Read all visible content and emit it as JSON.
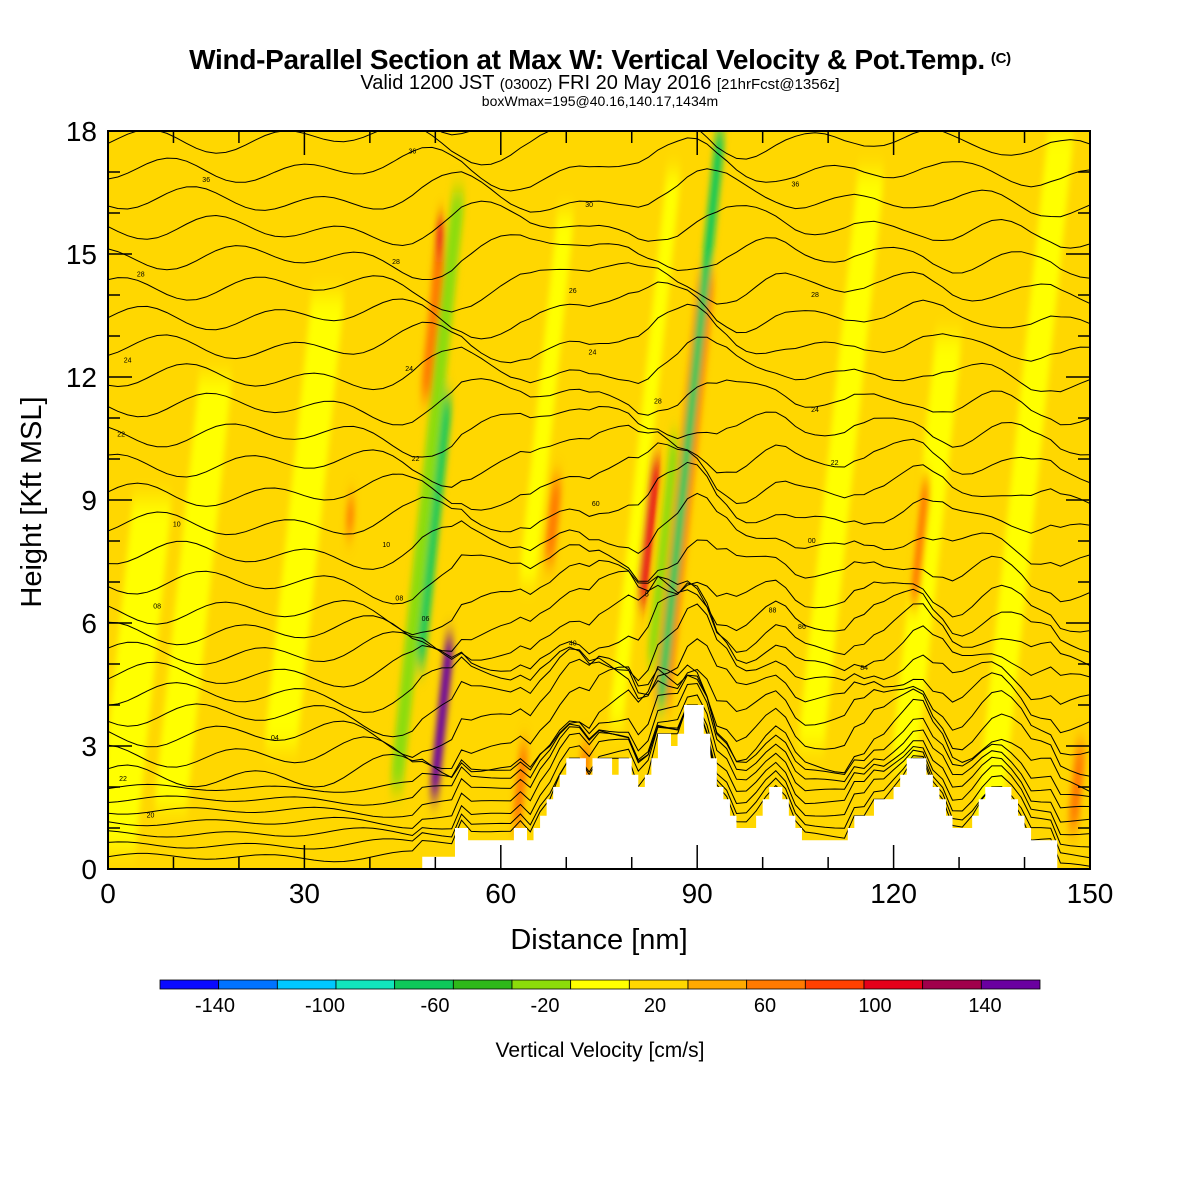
{
  "header": {
    "title": "Wind-Parallel Section at Max W: Vertical Velocity & Pot.Temp.",
    "copyright": "(C)",
    "valid_prefix": "Valid 1200 JST",
    "valid_z": "(0300Z)",
    "valid_date": "FRI 20 May 2016",
    "forecast": "[21hrFcst@1356z]",
    "box_info": "boxWmax=195@40.16,140.17,1434m"
  },
  "chart_data": {
    "type": "heatmap",
    "xlabel": "Distance [nm]",
    "ylabel": "Height [Kft MSL]",
    "xlim": [
      0,
      150
    ],
    "ylim": [
      0,
      18
    ],
    "x_ticks": [
      0,
      30,
      60,
      90,
      120,
      150
    ],
    "y_ticks": [
      0,
      3,
      6,
      9,
      12,
      15,
      18
    ],
    "background_value": 10,
    "columns": [
      {
        "x": 51,
        "w": 1.4,
        "y0": 1.8,
        "y1": 5.6,
        "value": 150
      },
      {
        "x": 50.5,
        "w": 1.2,
        "y0": 14.3,
        "y1": 15.8,
        "value": 90
      },
      {
        "x": 49.7,
        "w": 1.8,
        "y0": 11.5,
        "y1": 15.0,
        "value": 50
      },
      {
        "x": 49.7,
        "w": 1.6,
        "y0": 5.0,
        "y1": 11.5,
        "value": -80
      },
      {
        "x": 48.8,
        "w": 2.0,
        "y0": 2.0,
        "y1": 16.5,
        "value": -30
      },
      {
        "x": 87.8,
        "w": 1.4,
        "y0": 7.0,
        "y1": 12.5,
        "value": 150
      },
      {
        "x": 88,
        "w": 1.8,
        "y0": 5.5,
        "y1": 14.0,
        "value": 100
      },
      {
        "x": 88,
        "w": 2.6,
        "y0": 4.0,
        "y1": 14.5,
        "value": 50
      },
      {
        "x": 89,
        "w": 1.4,
        "y0": 4.0,
        "y1": 18.0,
        "value": -80
      },
      {
        "x": 82.5,
        "w": 1.6,
        "y0": 6.5,
        "y1": 10.0,
        "value": 80
      },
      {
        "x": 84.8,
        "w": 1.4,
        "y0": 5.0,
        "y1": 10.5,
        "value": -40
      },
      {
        "x": 82,
        "w": 2.2,
        "y0": 3.5,
        "y1": 17.0,
        "value": -20
      },
      {
        "x": 67,
        "w": 2.6,
        "y0": 7.0,
        "y1": 16.0,
        "value": -20
      },
      {
        "x": 68,
        "w": 1.6,
        "y0": 7.5,
        "y1": 9.5,
        "value": 50
      },
      {
        "x": 13,
        "w": 5.0,
        "y0": 1.5,
        "y1": 12.0,
        "value": -10
      },
      {
        "x": 4,
        "w": 6.0,
        "y0": 0.5,
        "y1": 9.0,
        "value": -10
      },
      {
        "x": 30,
        "w": 5.0,
        "y0": 3.0,
        "y1": 14.0,
        "value": -10
      },
      {
        "x": 112,
        "w": 4.0,
        "y0": 3.0,
        "y1": 17.0,
        "value": -10
      },
      {
        "x": 125,
        "w": 4.0,
        "y0": 2.5,
        "y1": 13.0,
        "value": -10
      },
      {
        "x": 140,
        "w": 4.0,
        "y0": 1.0,
        "y1": 18.0,
        "value": -10
      },
      {
        "x": 124,
        "w": 1.4,
        "y0": 6.5,
        "y1": 9.5,
        "value": 40
      },
      {
        "x": 37,
        "w": 1.2,
        "y0": 8.2,
        "y1": 9.0,
        "value": 50
      },
      {
        "x": 72.5,
        "w": 1.4,
        "y0": 1.0,
        "y1": 3.0,
        "value": 50
      },
      {
        "x": 63,
        "w": 1.4,
        "y0": 1.0,
        "y1": 3.0,
        "value": 40
      },
      {
        "x": 148,
        "w": 1.6,
        "y0": 1.0,
        "y1": 3.0,
        "value": 40
      }
    ],
    "terrain": [
      [
        48,
        0.3
      ],
      [
        50,
        0.3
      ],
      [
        52,
        0.3
      ],
      [
        53,
        1.0
      ],
      [
        55,
        0.7
      ],
      [
        61,
        0.7
      ],
      [
        62,
        1.0
      ],
      [
        64,
        0.7
      ],
      [
        65,
        1.0
      ],
      [
        66,
        1.3
      ],
      [
        67,
        1.7
      ],
      [
        68,
        2.0
      ],
      [
        69,
        2.3
      ],
      [
        70,
        2.7
      ],
      [
        72,
        2.7
      ],
      [
        73,
        2.3
      ],
      [
        74,
        2.7
      ],
      [
        76,
        2.7
      ],
      [
        77,
        2.3
      ],
      [
        78,
        2.7
      ],
      [
        79,
        2.7
      ],
      [
        80,
        2.3
      ],
      [
        81,
        2.0
      ],
      [
        82,
        2.3
      ],
      [
        83,
        2.7
      ],
      [
        84,
        3.3
      ],
      [
        85,
        3.3
      ],
      [
        86,
        3.0
      ],
      [
        87,
        3.3
      ],
      [
        88,
        4.0
      ],
      [
        90,
        4.0
      ],
      [
        91,
        3.3
      ],
      [
        92,
        2.7
      ],
      [
        93,
        2.0
      ],
      [
        94,
        1.7
      ],
      [
        95,
        1.3
      ],
      [
        96,
        1.0
      ],
      [
        98,
        1.0
      ],
      [
        99,
        1.3
      ],
      [
        100,
        1.7
      ],
      [
        101,
        2.0
      ],
      [
        102,
        2.0
      ],
      [
        103,
        1.7
      ],
      [
        104,
        1.3
      ],
      [
        105,
        1.0
      ],
      [
        106,
        0.7
      ],
      [
        108,
        0.7
      ],
      [
        110,
        0.7
      ],
      [
        112,
        0.7
      ],
      [
        113,
        1.0
      ],
      [
        114,
        1.3
      ],
      [
        116,
        1.3
      ],
      [
        117,
        1.7
      ],
      [
        119,
        1.7
      ],
      [
        120,
        2.0
      ],
      [
        121,
        2.3
      ],
      [
        122,
        2.7
      ],
      [
        124,
        2.7
      ],
      [
        125,
        2.3
      ],
      [
        126,
        2.0
      ],
      [
        127,
        1.7
      ],
      [
        128,
        1.3
      ],
      [
        129,
        1.0
      ],
      [
        131,
        1.0
      ],
      [
        132,
        1.3
      ],
      [
        133,
        1.7
      ],
      [
        134,
        2.0
      ],
      [
        136,
        2.0
      ],
      [
        137,
        2.0
      ],
      [
        138,
        1.7
      ],
      [
        139,
        1.3
      ],
      [
        140,
        1.0
      ],
      [
        141,
        0.7
      ],
      [
        142,
        0.7
      ],
      [
        143,
        0.7
      ],
      [
        144,
        0.7
      ],
      [
        145,
        0.7
      ]
    ],
    "isentrope_labels": [
      {
        "x": 15,
        "y": 16.8,
        "text": "36"
      },
      {
        "x": 5,
        "y": 14.5,
        "text": "28"
      },
      {
        "x": 3,
        "y": 12.4,
        "text": "24"
      },
      {
        "x": 2,
        "y": 10.6,
        "text": "22"
      },
      {
        "x": 10.5,
        "y": 8.4,
        "text": "10"
      },
      {
        "x": 7.5,
        "y": 6.4,
        "text": "08"
      },
      {
        "x": 2.3,
        "y": 2.2,
        "text": "22"
      },
      {
        "x": 6.5,
        "y": 1.3,
        "text": "20"
      },
      {
        "x": 25.5,
        "y": 3.2,
        "text": "04"
      },
      {
        "x": 46.5,
        "y": 17.5,
        "text": "36"
      },
      {
        "x": 44,
        "y": 14.8,
        "text": "28"
      },
      {
        "x": 46,
        "y": 12.2,
        "text": "24"
      },
      {
        "x": 47,
        "y": 10.0,
        "text": "22"
      },
      {
        "x": 42.5,
        "y": 7.9,
        "text": "10"
      },
      {
        "x": 44.5,
        "y": 6.6,
        "text": "08"
      },
      {
        "x": 48.5,
        "y": 6.1,
        "text": "06"
      },
      {
        "x": 73.5,
        "y": 16.2,
        "text": "30"
      },
      {
        "x": 71,
        "y": 14.1,
        "text": "26"
      },
      {
        "x": 74,
        "y": 12.6,
        "text": "24"
      },
      {
        "x": 84,
        "y": 11.4,
        "text": "28"
      },
      {
        "x": 74.5,
        "y": 8.9,
        "text": "60"
      },
      {
        "x": 82.3,
        "y": 6.7,
        "text": "5"
      },
      {
        "x": 71,
        "y": 5.5,
        "text": "40"
      },
      {
        "x": 105,
        "y": 16.7,
        "text": "36"
      },
      {
        "x": 108,
        "y": 14.0,
        "text": "28"
      },
      {
        "x": 108,
        "y": 11.2,
        "text": "24"
      },
      {
        "x": 111,
        "y": 9.9,
        "text": "22"
      },
      {
        "x": 107.5,
        "y": 8.0,
        "text": "00"
      },
      {
        "x": 101.5,
        "y": 6.3,
        "text": "88"
      },
      {
        "x": 106,
        "y": 5.9,
        "text": "86"
      },
      {
        "x": 115.5,
        "y": 4.9,
        "text": "84"
      }
    ]
  },
  "colorbar": {
    "title": "Vertical Velocity [cm/s]",
    "tick_labels": [
      "-140",
      "-100",
      "-60",
      "-20",
      "20",
      "60",
      "100",
      "140"
    ],
    "levels": [
      -160,
      -140,
      -120,
      -100,
      -80,
      -60,
      -40,
      -20,
      0,
      20,
      40,
      60,
      80,
      100,
      120,
      140,
      160
    ],
    "colors": [
      "#0a0aff",
      "#0073ff",
      "#00c8ff",
      "#12e6bd",
      "#0fc85a",
      "#2eb91a",
      "#8cdc0a",
      "#ffff00",
      "#ffd700",
      "#ffaa00",
      "#ff7a00",
      "#ff4000",
      "#e6001a",
      "#a0004b",
      "#6a00a0"
    ],
    "missing_color": "#ffffff"
  }
}
